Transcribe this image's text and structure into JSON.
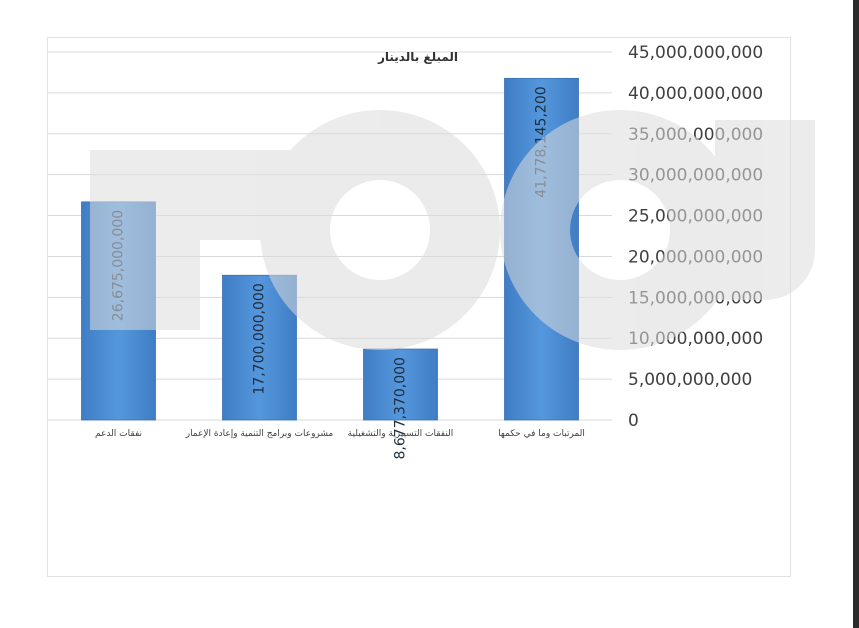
{
  "chart_data": {
    "type": "bar",
    "title": "المبلغ بالدينار",
    "categories": [
      "نفقات الدعم",
      "مشروعات وبرامج التنمية وإعادة الإعمار",
      "النفقات التسييرية والتشغيلية",
      "المرتبات وما في حكمها"
    ],
    "values": [
      26675000000,
      17700000000,
      8677370000,
      41778145200
    ],
    "data_labels": [
      "26,675,000,000",
      "17,700,000,000",
      "8,677,370,000",
      "41,778,145,200"
    ],
    "ylim": [
      0,
      45000000000
    ],
    "y_ticks": [
      0,
      5000000000,
      10000000000,
      15000000000,
      20000000000,
      25000000000,
      30000000000,
      35000000000,
      40000000000,
      45000000000
    ],
    "y_tick_labels": [
      "0",
      "5,000,000,000",
      "10,000,000,000",
      "15,000,000,000",
      "20,000,000,000",
      "25,000,000,000",
      "30,000,000,000",
      "35,000,000,000",
      "40,000,000,000",
      "45,000,000,000"
    ],
    "y_axis_position": "right",
    "grid": true,
    "colors": {
      "bar": "#4a88cc",
      "bar_dark": "#3a72b4",
      "grid": "#d9d9d9",
      "tick_text": "#404040"
    }
  }
}
